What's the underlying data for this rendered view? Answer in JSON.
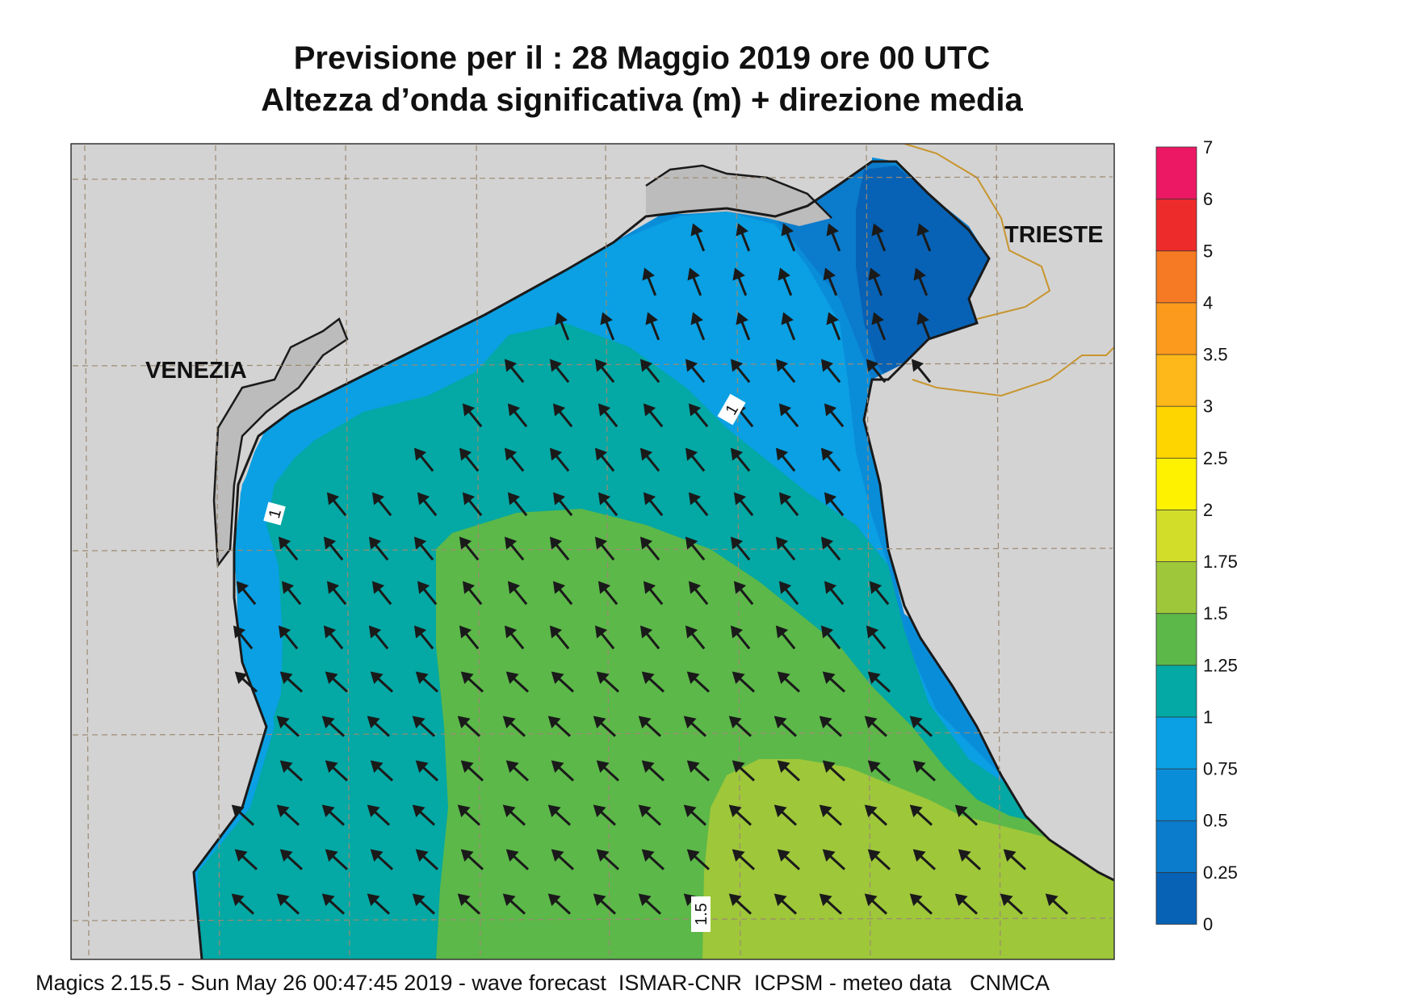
{
  "title_line1": "Previsione per il  :  28   Maggio  2019   ore 00 UTC",
  "title_line2": "Altezza d’onda significativa (m) + direzione media",
  "cities": {
    "venezia": "VENEZIA",
    "trieste": "TRIESTE"
  },
  "contour_labels": {
    "one_a": "1",
    "one_b": "1",
    "one_point_five": "1.5"
  },
  "legend": {
    "ticks": [
      "0",
      "0.25",
      "0.5",
      "0.75",
      "1",
      "1.25",
      "1.5",
      "1.75",
      "2",
      "2.5",
      "3",
      "3.5",
      "4",
      "5",
      "6",
      "7"
    ],
    "colors": [
      "#0762b5",
      "#0b7bcc",
      "#0a8dd9",
      "#0aa0e3",
      "#04a8a4",
      "#5cb849",
      "#9ec73a",
      "#d2dd2a",
      "#fff200",
      "#ffd500",
      "#ffb81a",
      "#fb9a1c",
      "#f57a23",
      "#ee2b2b",
      "#ec1863"
    ]
  },
  "footer": "Magics 2.15.5 - Sun May 26 00:47:45 2019 - wave forecast  ISMAR-CNR  ICPSM - meteo data   CNMCA",
  "colors": {
    "land": "#d3d3d3",
    "lagoon": "#bcbcbc",
    "coast": "#1a1a1a",
    "border": "#c8952e",
    "grid": "#9c8a72"
  }
}
